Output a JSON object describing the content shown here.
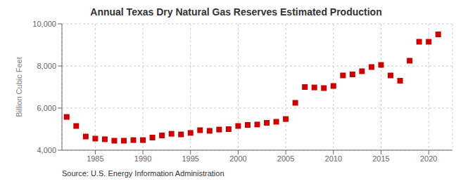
{
  "chart_data": {
    "type": "scatter",
    "title": "Annual Texas Dry Natural Gas Reserves Estimated Production",
    "y_label": "Billion Cubic Feet",
    "annotation": "Source: U.S. Energy Information Administration",
    "color": "#cc0000",
    "marker": "square",
    "grid": true,
    "xlim": [
      1981.5,
      2022.5
    ],
    "xticks": [
      1985,
      1990,
      1995,
      2000,
      2005,
      2010,
      2015,
      2020
    ],
    "ylim": [
      4000,
      10000
    ],
    "yticks": [
      {
        "value": 4000,
        "label": "4,000"
      },
      {
        "value": 6000,
        "label": "6,000"
      },
      {
        "value": 8000,
        "label": "8,000"
      },
      {
        "value": 10000,
        "label": "10,000"
      }
    ],
    "x": [
      1982,
      1983,
      1984,
      1985,
      1986,
      1987,
      1988,
      1989,
      1990,
      1991,
      1992,
      1993,
      1994,
      1995,
      1996,
      1997,
      1998,
      1999,
      2000,
      2001,
      2002,
      2003,
      2004,
      2005,
      2006,
      2007,
      2008,
      2009,
      2010,
      2011,
      2012,
      2013,
      2014,
      2015,
      2016,
      2017,
      2018,
      2019,
      2020,
      2021
    ],
    "values": [
      5580,
      5150,
      4650,
      4550,
      4520,
      4450,
      4450,
      4480,
      4480,
      4600,
      4700,
      4780,
      4750,
      4820,
      4950,
      4920,
      4980,
      5000,
      5150,
      5200,
      5220,
      5300,
      5350,
      5480,
      6250,
      7000,
      6980,
      6950,
      7050,
      7550,
      7600,
      7750,
      7950,
      8050,
      7550,
      7300,
      8250,
      9150,
      9150,
      9500
    ]
  }
}
